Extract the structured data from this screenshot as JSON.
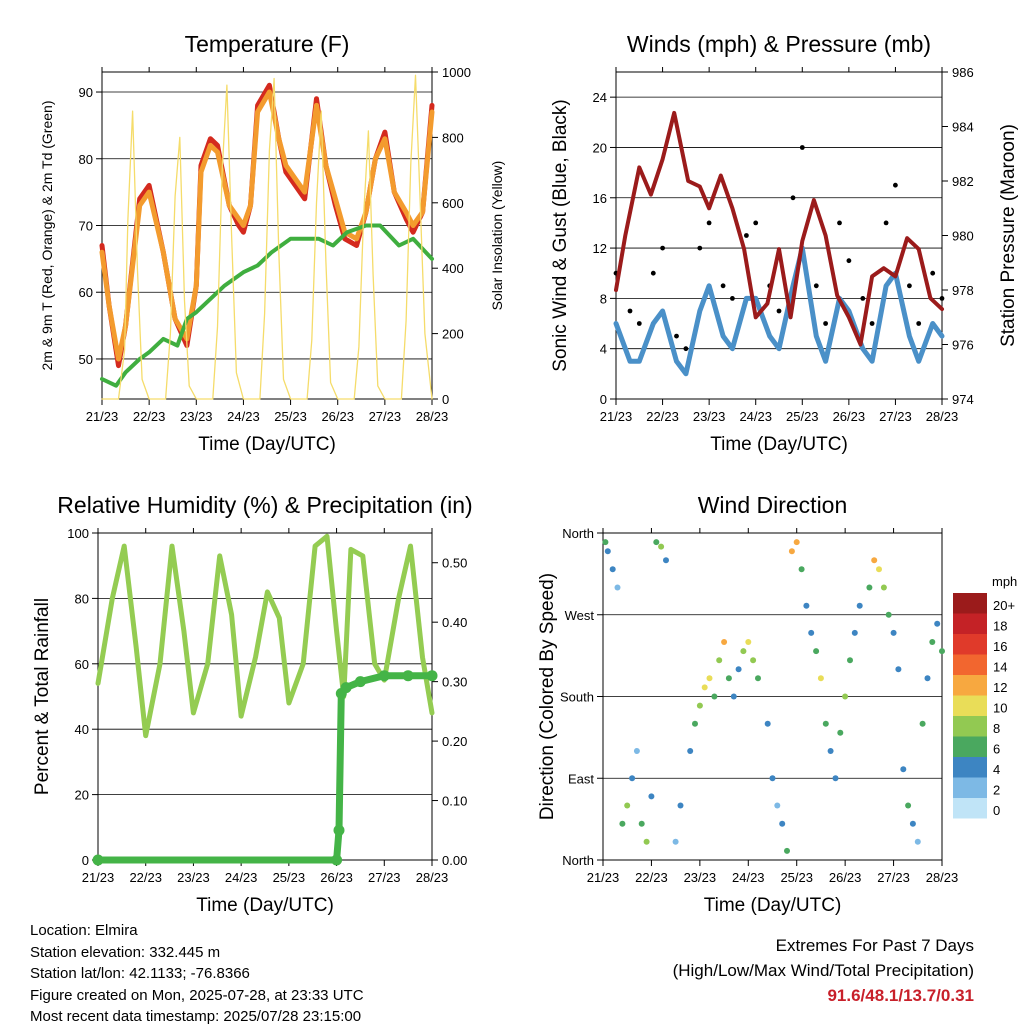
{
  "colors": {
    "temp_2m": "#d42a1e",
    "temp_9m": "#f39b2e",
    "dewpoint": "#3fae3f",
    "insolation": "#f5dc6a",
    "wind": "#4a90c8",
    "gust": "#000000",
    "pressure": "#9b1b1b",
    "rh": "#94cc52",
    "precip": "#44b447",
    "extremes_text": "#c8202a"
  },
  "time_axis": {
    "label": "Time (Day/UTC)",
    "ticks": [
      "21/23",
      "22/23",
      "23/23",
      "24/23",
      "25/23",
      "26/23",
      "27/23",
      "28/23"
    ]
  },
  "chart_data": [
    {
      "id": "temperature",
      "type": "line",
      "title": "Temperature (F)",
      "ylabel": "2m & 9m T (Red, Orange) & 2m Td (Green)",
      "y2label": "Solar Insolation (Yellow)",
      "ylim": [
        44,
        93
      ],
      "y2lim": [
        0,
        1000
      ],
      "yticks": [
        50,
        60,
        70,
        80,
        90
      ],
      "y2ticks": [
        0,
        200,
        400,
        600,
        800,
        1000
      ],
      "grid": true,
      "series": [
        {
          "key": "t2m",
          "color_key": "temp_2m",
          "x": [
            0,
            0.15,
            0.35,
            0.5,
            0.8,
            1.0,
            1.3,
            1.55,
            1.8,
            2.0,
            2.1,
            2.3,
            2.45,
            2.7,
            2.9,
            3.0,
            3.15,
            3.3,
            3.55,
            3.75,
            3.9,
            4.1,
            4.3,
            4.55,
            4.75,
            4.95,
            5.15,
            5.4,
            5.6,
            5.8,
            6.0,
            6.2,
            6.45,
            6.6,
            6.8,
            7.0
          ],
          "y": [
            67,
            58,
            49,
            55,
            74,
            76,
            66,
            56,
            52,
            61,
            79,
            83,
            82,
            73,
            70,
            69,
            73,
            88,
            91,
            83,
            78,
            76,
            74,
            89,
            79,
            73,
            68,
            67,
            72,
            80,
            84,
            75,
            71,
            69,
            72,
            88
          ]
        },
        {
          "key": "t9m",
          "color_key": "temp_9m",
          "x": [
            0,
            0.15,
            0.35,
            0.5,
            0.8,
            1.0,
            1.3,
            1.55,
            1.8,
            2.0,
            2.1,
            2.3,
            2.45,
            2.7,
            2.9,
            3.0,
            3.15,
            3.3,
            3.55,
            3.75,
            3.9,
            4.1,
            4.3,
            4.55,
            4.75,
            4.95,
            5.15,
            5.4,
            5.6,
            5.8,
            6.0,
            6.2,
            6.45,
            6.6,
            6.8,
            7.0
          ],
          "y": [
            66,
            58,
            50,
            55,
            73,
            75,
            66,
            56,
            53,
            61,
            78,
            82,
            81,
            73,
            71,
            70,
            73,
            87,
            90,
            83,
            79,
            77,
            75,
            88,
            79,
            74,
            69,
            68,
            72,
            80,
            83,
            75,
            72,
            70,
            72,
            87
          ]
        },
        {
          "key": "td",
          "color_key": "dewpoint",
          "x": [
            0,
            0.3,
            0.5,
            0.8,
            1.0,
            1.3,
            1.6,
            1.8,
            2.0,
            2.3,
            2.6,
            3.0,
            3.3,
            3.6,
            4.0,
            4.3,
            4.6,
            4.9,
            5.2,
            5.6,
            5.9,
            6.3,
            6.6,
            7.0
          ],
          "y": [
            47,
            46,
            48,
            50,
            51,
            53,
            52,
            56,
            57,
            59,
            61,
            63,
            64,
            66,
            68,
            68,
            68,
            67,
            69,
            70,
            70,
            67,
            68,
            65
          ]
        },
        {
          "key": "sol",
          "color_key": "insolation",
          "axis": "y2",
          "x": [
            0,
            0.1,
            0.22,
            0.35,
            0.48,
            0.55,
            0.65,
            0.75,
            0.85,
            1.0,
            1.1,
            1.22,
            1.35,
            1.45,
            1.55,
            1.65,
            1.75,
            1.85,
            2.0,
            2.1,
            2.22,
            2.35,
            2.45,
            2.55,
            2.65,
            2.75,
            2.85,
            3.0,
            3.1,
            3.22,
            3.35,
            3.45,
            3.55,
            3.65,
            3.75,
            3.85,
            4.0,
            4.1,
            4.22,
            4.35,
            4.45,
            4.55,
            4.65,
            4.75,
            4.85,
            5.0,
            5.1,
            5.22,
            5.35,
            5.45,
            5.55,
            5.65,
            5.75,
            5.85,
            6.0,
            6.1,
            6.22,
            6.35,
            6.45,
            6.55,
            6.65,
            6.75,
            6.85,
            7.0
          ],
          "y": [
            0,
            0,
            0,
            0,
            150,
            550,
            880,
            400,
            60,
            0,
            0,
            0,
            0,
            200,
            620,
            800,
            300,
            40,
            0,
            0,
            0,
            0,
            220,
            700,
            960,
            500,
            80,
            0,
            0,
            0,
            0,
            260,
            760,
            980,
            450,
            60,
            0,
            0,
            0,
            0,
            180,
            600,
            880,
            420,
            50,
            0,
            0,
            0,
            0,
            160,
            560,
            820,
            380,
            40,
            0,
            0,
            0,
            0,
            240,
            720,
            990,
            600,
            200,
            0
          ]
        }
      ]
    },
    {
      "id": "winds",
      "type": "scatter",
      "title": "Winds (mph) & Pressure (mb)",
      "ylabel": "Sonic Wind & Gust (Blue, Black)",
      "y2label": "Station Pressure (Maroon)",
      "ylim": [
        0,
        26
      ],
      "y2lim": [
        974,
        986
      ],
      "yticks": [
        0,
        4,
        8,
        12,
        16,
        20,
        24
      ],
      "y2ticks": [
        974,
        976,
        978,
        980,
        982,
        984,
        986
      ],
      "grid": true,
      "series": [
        {
          "key": "gust",
          "color_key": "gust",
          "x": [
            0,
            0.3,
            0.5,
            0.8,
            1.0,
            1.3,
            1.5,
            1.8,
            2.0,
            2.3,
            2.5,
            2.8,
            3.0,
            3.3,
            3.5,
            3.8,
            4.0,
            4.3,
            4.5,
            4.8,
            5.0,
            5.3,
            5.5,
            5.8,
            6.0,
            6.3,
            6.5,
            6.8,
            7.0
          ],
          "y": [
            10,
            7,
            6,
            10,
            12,
            5,
            4,
            12,
            14,
            9,
            8,
            13,
            14,
            9,
            7,
            16,
            20,
            9,
            6,
            14,
            11,
            8,
            6,
            14,
            17,
            9,
            6,
            10,
            8
          ]
        },
        {
          "key": "wind",
          "color_key": "wind",
          "x": [
            0,
            0.3,
            0.5,
            0.8,
            1.0,
            1.3,
            1.5,
            1.8,
            2.0,
            2.3,
            2.5,
            2.8,
            3.0,
            3.3,
            3.5,
            3.8,
            4.0,
            4.3,
            4.5,
            4.8,
            5.0,
            5.3,
            5.5,
            5.8,
            6.0,
            6.3,
            6.5,
            6.8,
            7.0
          ],
          "y": [
            6,
            3,
            3,
            6,
            7,
            3,
            2,
            7,
            9,
            5,
            4,
            8,
            8,
            5,
            4,
            9,
            12,
            5,
            3,
            8,
            7,
            4,
            3,
            9,
            10,
            5,
            3,
            6,
            5
          ]
        },
        {
          "key": "pres",
          "color_key": "pressure",
          "axis": "y2",
          "x": [
            0,
            0.2,
            0.5,
            0.75,
            1.0,
            1.25,
            1.55,
            1.8,
            2.0,
            2.25,
            2.5,
            2.75,
            3.0,
            3.25,
            3.5,
            3.75,
            4.0,
            4.25,
            4.5,
            4.75,
            5.0,
            5.25,
            5.5,
            5.75,
            6.0,
            6.25,
            6.5,
            6.75,
            7.0
          ],
          "y": [
            978,
            980,
            982.5,
            981.5,
            982.8,
            984.5,
            982,
            981.8,
            981,
            982.2,
            981,
            979.5,
            977,
            977.5,
            979.5,
            977,
            979.8,
            981.3,
            980,
            977.8,
            977,
            976,
            978.5,
            978.8,
            978.5,
            979.9,
            979.5,
            977.7,
            977.3
          ]
        }
      ]
    },
    {
      "id": "humidity",
      "type": "line",
      "title": "Relative Humidity (%) & Precipitation (in)",
      "ylabel": "Percent & Total Rainfall",
      "ylim": [
        0,
        100
      ],
      "y2lim": [
        0,
        0.55
      ],
      "yticks": [
        0,
        20,
        40,
        60,
        80,
        100
      ],
      "y2ticks": [
        "0.00",
        "0.10",
        "0.20",
        "0.30",
        "0.40",
        "0.50"
      ],
      "grid": true,
      "series": [
        {
          "key": "rh",
          "color_key": "rh",
          "x": [
            0,
            0.3,
            0.55,
            0.8,
            1.0,
            1.3,
            1.55,
            1.8,
            2.0,
            2.3,
            2.55,
            2.8,
            3.0,
            3.3,
            3.55,
            3.8,
            4.0,
            4.3,
            4.55,
            4.8,
            5.0,
            5.15,
            5.3,
            5.55,
            5.8,
            6.0,
            6.3,
            6.55,
            6.8,
            7.0
          ],
          "y": [
            54,
            80,
            96,
            65,
            38,
            60,
            96,
            70,
            45,
            60,
            93,
            75,
            44,
            62,
            82,
            74,
            48,
            60,
            96,
            99,
            70,
            50,
            95,
            93,
            60,
            55,
            80,
            96,
            62,
            45
          ]
        },
        {
          "key": "precip",
          "color_key": "precip",
          "axis": "y2",
          "x": [
            0,
            5.0,
            5.05,
            5.1,
            5.2,
            5.5,
            6.0,
            6.5,
            7.0
          ],
          "y": [
            0,
            0,
            0.05,
            0.28,
            0.29,
            0.3,
            0.31,
            0.31,
            0.31
          ]
        }
      ]
    },
    {
      "id": "direction",
      "type": "scatter",
      "title": "Wind Direction",
      "ylabel": "Direction (Colored By Speed)",
      "yticks_labels": [
        "North",
        "East",
        "South",
        "West",
        "North"
      ],
      "ylim": [
        0,
        360
      ],
      "legend_title": "mph",
      "legend_labels": [
        "20+",
        "18",
        "16",
        "14",
        "12",
        "10",
        "8",
        "6",
        "4",
        "2",
        "0"
      ],
      "legend_colors": [
        "#9b1b1b",
        "#c42226",
        "#e03a2a",
        "#f2662f",
        "#f7a840",
        "#e9dd58",
        "#92c952",
        "#4aa85f",
        "#3d85c2",
        "#7db9e5",
        "#c0e4f7"
      ],
      "legend_placement": "right",
      "series": [
        {
          "key": "dir",
          "x": [
            0.05,
            0.1,
            0.2,
            0.3,
            0.4,
            0.5,
            0.6,
            0.7,
            0.8,
            0.9,
            1.0,
            1.1,
            1.2,
            1.3,
            1.5,
            1.6,
            1.8,
            1.9,
            2.0,
            2.1,
            2.2,
            2.3,
            2.4,
            2.5,
            2.6,
            2.7,
            2.8,
            2.9,
            3.0,
            3.1,
            3.2,
            3.4,
            3.5,
            3.6,
            3.7,
            3.8,
            3.9,
            4.0,
            4.1,
            4.2,
            4.3,
            4.4,
            4.5,
            4.6,
            4.7,
            4.8,
            4.9,
            5.0,
            5.1,
            5.2,
            5.3,
            5.5,
            5.6,
            5.7,
            5.8,
            5.9,
            6.0,
            6.1,
            6.2,
            6.3,
            6.4,
            6.5,
            6.6,
            6.7,
            6.8,
            6.9,
            7.0
          ],
          "y": [
            350,
            340,
            320,
            300,
            40,
            60,
            90,
            120,
            40,
            20,
            70,
            350,
            345,
            330,
            20,
            60,
            120,
            150,
            170,
            190,
            200,
            180,
            220,
            240,
            200,
            180,
            210,
            230,
            240,
            220,
            200,
            150,
            90,
            60,
            40,
            10,
            340,
            350,
            320,
            280,
            250,
            230,
            200,
            150,
            120,
            90,
            140,
            180,
            220,
            250,
            280,
            300,
            330,
            320,
            300,
            270,
            250,
            210,
            100,
            60,
            40,
            20,
            150,
            200,
            240,
            260,
            230
          ],
          "speed": [
            6,
            3,
            4,
            2,
            5,
            8,
            3,
            2,
            6,
            7,
            4,
            5,
            7,
            3,
            2,
            3,
            4,
            6,
            7,
            10,
            9,
            5,
            8,
            11,
            6,
            3,
            4,
            7,
            10,
            8,
            5,
            3,
            4,
            2,
            3,
            6,
            12,
            11,
            5,
            3,
            4,
            6,
            9,
            5,
            3,
            4,
            6,
            8,
            5,
            4,
            3,
            6,
            12,
            10,
            7,
            5,
            4,
            3,
            4,
            6,
            3,
            2,
            5,
            4,
            6,
            3,
            5
          ]
        }
      ]
    }
  ],
  "station_info": {
    "location": "Location: Elmira",
    "elevation": "Station elevation: 332.445 m",
    "latlon": "Station lat/lon: 42.1133; -76.8366",
    "created": "Figure created on Mon, 2025-07-28, at 23:33 UTC",
    "timestamp": "Most recent data timestamp: 2025/07/28 23:15:00"
  },
  "extremes": {
    "heading": "Extremes For Past 7 Days",
    "subheading": "(High/Low/Max Wind/Total Precipitation)",
    "values": "91.6/48.1/13.7/0.31"
  }
}
